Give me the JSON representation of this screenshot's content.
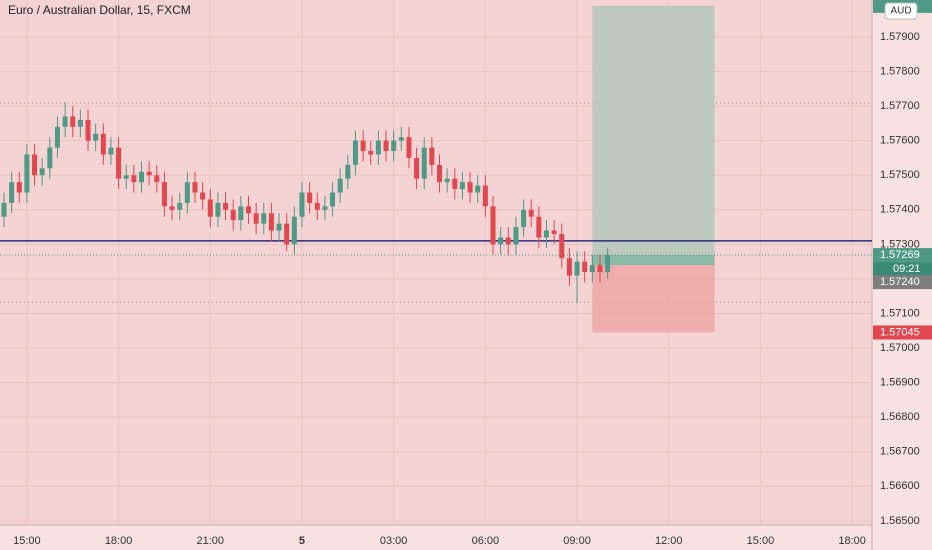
{
  "chart_data": {
    "type": "candlestick",
    "title": "Euro / Australian Dollar, 15, FXCM",
    "x": [
      14.25,
      14.5,
      14.75,
      15,
      15.25,
      15.5,
      15.75,
      16,
      16.25,
      16.5,
      16.75,
      17,
      17.25,
      17.5,
      17.75,
      18,
      18.25,
      18.5,
      18.75,
      19,
      19.25,
      19.5,
      19.75,
      20,
      20.25,
      20.5,
      20.75,
      21,
      21.25,
      21.5,
      21.75,
      22,
      22.25,
      22.5,
      22.75,
      23,
      23.25,
      23.5,
      23.75,
      24,
      24.25,
      24.5,
      24.75,
      25,
      25.25,
      25.5,
      25.75,
      26,
      26.25,
      26.5,
      26.75,
      27,
      27.25,
      27.5,
      27.75,
      28,
      28.25,
      28.5,
      28.75,
      29,
      29.25,
      29.5,
      29.75,
      30,
      30.25,
      30.5,
      30.75,
      31,
      31.25,
      31.5,
      31.75,
      32,
      32.25,
      32.5,
      32.75,
      33,
      33.25,
      33.5,
      33.75,
      34
    ],
    "open": [
      1.5738,
      1.5742,
      1.5748,
      1.5745,
      1.5756,
      1.575,
      1.5752,
      1.5758,
      1.5764,
      1.5767,
      1.5764,
      1.5766,
      1.576,
      1.5762,
      1.5756,
      1.5758,
      1.5749,
      1.575,
      1.5748,
      1.5751,
      1.575,
      1.5748,
      1.5741,
      1.574,
      1.5742,
      1.5748,
      1.5745,
      1.5743,
      1.5738,
      1.5742,
      1.574,
      1.5737,
      1.5741,
      1.5739,
      1.5736,
      1.5739,
      1.5734,
      1.5736,
      1.573,
      1.5738,
      1.5745,
      1.5742,
      1.574,
      1.5741,
      1.5745,
      1.5749,
      1.5753,
      1.576,
      1.5757,
      1.5756,
      1.576,
      1.5757,
      1.576,
      1.5761,
      1.5755,
      1.5749,
      1.5758,
      1.5753,
      1.5748,
      1.5749,
      1.5746,
      1.5748,
      1.5745,
      1.5747,
      1.5741,
      1.573,
      1.5732,
      1.573,
      1.5735,
      1.574,
      1.5738,
      1.5732,
      1.5734,
      1.5733,
      1.5726,
      1.5721,
      1.5725,
      1.5722,
      1.5724,
      1.5722
    ],
    "high": [
      1.5745,
      1.5751,
      1.5751,
      1.5759,
      1.5759,
      1.5755,
      1.5761,
      1.5767,
      1.5771,
      1.577,
      1.5769,
      1.5769,
      1.5765,
      1.5765,
      1.5761,
      1.5761,
      1.5753,
      1.5753,
      1.5754,
      1.5754,
      1.5753,
      1.5751,
      1.5744,
      1.5745,
      1.5751,
      1.5751,
      1.5748,
      1.5746,
      1.5745,
      1.5745,
      1.5743,
      1.5744,
      1.5744,
      1.5742,
      1.5742,
      1.5742,
      1.5739,
      1.5739,
      1.5741,
      1.5748,
      1.5748,
      1.5745,
      1.5744,
      1.5748,
      1.5752,
      1.5756,
      1.5763,
      1.5763,
      1.576,
      1.5763,
      1.5763,
      1.5763,
      1.5764,
      1.5764,
      1.5758,
      1.5761,
      1.5761,
      1.5756,
      1.5752,
      1.5752,
      1.5751,
      1.5751,
      1.575,
      1.575,
      1.5744,
      1.5735,
      1.5735,
      1.5738,
      1.5743,
      1.5743,
      1.5741,
      1.5737,
      1.5737,
      1.5736,
      1.5729,
      1.5728,
      1.5728,
      1.5727,
      1.5727,
      1.5729
    ],
    "low": [
      1.5735,
      1.5739,
      1.5742,
      1.5742,
      1.5747,
      1.5747,
      1.5749,
      1.5755,
      1.5761,
      1.5761,
      1.5761,
      1.5757,
      1.5757,
      1.5753,
      1.5753,
      1.5746,
      1.5746,
      1.5745,
      1.5745,
      1.5747,
      1.5745,
      1.5738,
      1.5737,
      1.5737,
      1.5739,
      1.5742,
      1.574,
      1.5735,
      1.5735,
      1.5737,
      1.5734,
      1.5734,
      1.5736,
      1.5733,
      1.5733,
      1.5731,
      1.5731,
      1.5728,
      1.5727,
      1.5735,
      1.5739,
      1.5737,
      1.5737,
      1.5738,
      1.5742,
      1.5746,
      1.575,
      1.5754,
      1.5753,
      1.5753,
      1.5754,
      1.5754,
      1.5757,
      1.5752,
      1.5746,
      1.5746,
      1.575,
      1.5745,
      1.5745,
      1.5743,
      1.5743,
      1.5742,
      1.5742,
      1.5738,
      1.5727,
      1.5727,
      1.5727,
      1.5727,
      1.5732,
      1.5735,
      1.5729,
      1.5729,
      1.573,
      1.5723,
      1.5718,
      1.5713,
      1.5719,
      1.5719,
      1.5719,
      1.572
    ],
    "close": [
      1.5742,
      1.5748,
      1.5745,
      1.5756,
      1.575,
      1.5752,
      1.5758,
      1.5764,
      1.5767,
      1.5764,
      1.5766,
      1.576,
      1.5762,
      1.5756,
      1.5758,
      1.5749,
      1.575,
      1.5748,
      1.5751,
      1.575,
      1.5748,
      1.5741,
      1.574,
      1.5742,
      1.5748,
      1.5745,
      1.5743,
      1.5738,
      1.5742,
      1.574,
      1.5737,
      1.5741,
      1.5739,
      1.5736,
      1.5739,
      1.5734,
      1.5736,
      1.573,
      1.5738,
      1.5745,
      1.5742,
      1.574,
      1.5741,
      1.5745,
      1.5749,
      1.5753,
      1.576,
      1.5757,
      1.5756,
      1.576,
      1.5757,
      1.576,
      1.5761,
      1.5755,
      1.5749,
      1.5758,
      1.5753,
      1.5748,
      1.5749,
      1.5746,
      1.5748,
      1.5745,
      1.5747,
      1.5741,
      1.573,
      1.5732,
      1.573,
      1.5735,
      1.574,
      1.5738,
      1.5732,
      1.5734,
      1.5733,
      1.5726,
      1.5721,
      1.5725,
      1.5722,
      1.5724,
      1.5722,
      1.5727
    ],
    "up_color": "#4f9a86",
    "down_color": "#e0474f",
    "xlim": [
      14.12,
      42.65
    ],
    "xticks": [
      {
        "value": 15,
        "label": "15:00"
      },
      {
        "value": 18,
        "label": "18:00"
      },
      {
        "value": 21,
        "label": "21:00"
      },
      {
        "value": 24,
        "label": "5"
      },
      {
        "value": 27,
        "label": "03:00"
      },
      {
        "value": 30,
        "label": "06:00"
      },
      {
        "value": 33,
        "label": "09:00"
      },
      {
        "value": 36,
        "label": "12:00"
      },
      {
        "value": 39,
        "label": "15:00"
      },
      {
        "value": 42,
        "label": "18:00"
      }
    ],
    "ylim": [
      1.56488,
      1.58007
    ],
    "yticks": [
      {
        "value": 1.565,
        "label": "1.56500"
      },
      {
        "value": 1.566,
        "label": "1.56600"
      },
      {
        "value": 1.567,
        "label": "1.56700"
      },
      {
        "value": 1.568,
        "label": "1.56800"
      },
      {
        "value": 1.569,
        "label": "1.56900"
      },
      {
        "value": 1.57,
        "label": "1.57000"
      },
      {
        "value": 1.571,
        "label": "1.57100"
      },
      {
        "value": 1.572,
        "label": "1.57200"
      },
      {
        "value": 1.573,
        "label": "1.57300"
      },
      {
        "value": 1.574,
        "label": "1.57400"
      },
      {
        "value": 1.575,
        "label": "1.57500"
      },
      {
        "value": 1.576,
        "label": "1.57600"
      },
      {
        "value": 1.577,
        "label": "1.57700"
      },
      {
        "value": 1.578,
        "label": "1.57800"
      },
      {
        "value": 1.579,
        "label": "1.57900"
      }
    ],
    "grid": true,
    "horizontal_line": {
      "value": 1.5731,
      "color": "#2a2a7a"
    },
    "dotted_levels": [
      1.57709,
      1.57133
    ],
    "position": {
      "x_start": 33.5,
      "x_end": 37.5,
      "target": 1.5799,
      "entry": {
        "value": 1.5724,
        "label": "1.57240"
      },
      "stop": {
        "value": 1.57045,
        "label": "1.57045"
      }
    },
    "last_price": 1.57269,
    "countdown": "09:21",
    "currency": "AUD"
  }
}
